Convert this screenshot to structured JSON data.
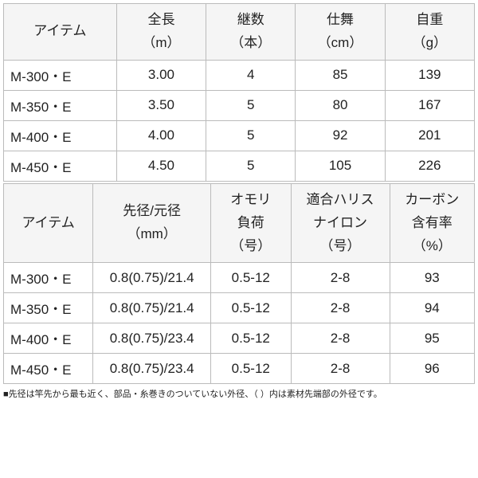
{
  "table1": {
    "headers": [
      {
        "l1": "アイテム",
        "l2": ""
      },
      {
        "l1": "全長",
        "l2": "（m）"
      },
      {
        "l1": "継数",
        "l2": "（本）"
      },
      {
        "l1": "仕舞",
        "l2": "（cm）"
      },
      {
        "l1": "自重",
        "l2": "（g）"
      }
    ],
    "rows": [
      {
        "item": "M-300・E",
        "c1": "3.00",
        "c2": "4",
        "c3": "85",
        "c4": "139"
      },
      {
        "item": "M-350・E",
        "c1": "3.50",
        "c2": "5",
        "c3": "80",
        "c4": "167"
      },
      {
        "item": "M-400・E",
        "c1": "4.00",
        "c2": "5",
        "c3": "92",
        "c4": "201"
      },
      {
        "item": "M-450・E",
        "c1": "4.50",
        "c2": "5",
        "c3": "105",
        "c4": "226"
      }
    ]
  },
  "table2": {
    "headers": [
      {
        "l1": "アイテム",
        "l2": "",
        "l3": ""
      },
      {
        "l1": "先径/元径",
        "l2": "（mm）",
        "l3": ""
      },
      {
        "l1": "オモリ",
        "l2": "負荷",
        "l3": "（号）"
      },
      {
        "l1": "適合ハリス",
        "l2": "ナイロン",
        "l3": "（号）"
      },
      {
        "l1": "カーボン",
        "l2": "含有率",
        "l3": "（%）"
      }
    ],
    "rows": [
      {
        "item": "M-300・E",
        "c1": "0.8(0.75)/21.4",
        "c2": "0.5-12",
        "c3": "2-8",
        "c4": "93"
      },
      {
        "item": "M-350・E",
        "c1": "0.8(0.75)/21.4",
        "c2": "0.5-12",
        "c3": "2-8",
        "c4": "94"
      },
      {
        "item": "M-400・E",
        "c1": "0.8(0.75)/23.4",
        "c2": "0.5-12",
        "c3": "2-8",
        "c4": "95"
      },
      {
        "item": "M-450・E",
        "c1": "0.8(0.75)/23.4",
        "c2": "0.5-12",
        "c3": "2-8",
        "c4": "96"
      }
    ]
  },
  "footnote": "■先径は竿先から最も近く、部品・糸巻きのついていない外径、（ ）内は素材先端部の外径です。"
}
